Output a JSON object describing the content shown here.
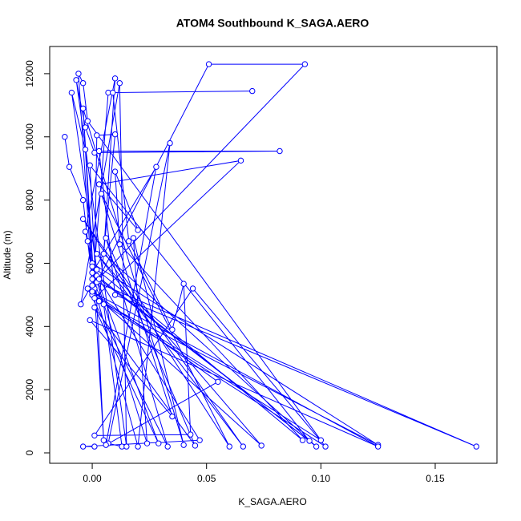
{
  "chart_data": {
    "type": "line",
    "title": "ATOM4 Southbound K_SAGA.AERO",
    "x_label": "K_SAGA.AERO",
    "y_label": "Altitude (m)",
    "color": "#0000ff",
    "x": [
      -0.012,
      -0.01,
      -0.004,
      -0.002,
      0.0,
      0.005,
      0.013,
      0.007,
      0.034,
      0.02,
      0.001,
      0.002,
      0.01,
      0.003,
      0.125,
      0.0,
      -0.003,
      0.01,
      0.005,
      0.098,
      0.002,
      -0.005,
      0.012,
      0.015,
      -0.007,
      -0.003,
      0.001,
      0.082,
      0.003,
      0.01,
      0.168,
      0.002,
      0.051,
      0.093,
      0.0,
      -0.006,
      -0.004,
      -0.002,
      0.1,
      0.0,
      0.007,
      0.07,
      0.009,
      0.016,
      0.035,
      0.04,
      0.043,
      0.001,
      0.044,
      0.102,
      0.001,
      0.065,
      0.003,
      0.02,
      0.01,
      0.012,
      0.092,
      0.002,
      -0.009,
      -0.003,
      0.0,
      0.028,
      0.006,
      0.055,
      0.0,
      0.125,
      -0.001,
      0.035,
      0.004,
      0.06,
      -0.004,
      0.066,
      0.002,
      0.074,
      -0.002,
      0.033,
      0.006,
      0.045,
      0.001,
      0.029,
      0.0,
      0.024,
      0.018,
      0.04,
      -0.004,
      0.005,
      -0.001,
      0.095,
      0.003,
      0.047,
      -0.004,
      0.001
    ],
    "y": [
      10000,
      9050,
      8000,
      6700,
      5500,
      4700,
      200,
      300,
      9800,
      200,
      5200,
      10050,
      10080,
      4800,
      250,
      6000,
      7000,
      11850,
      6300,
      200,
      5600,
      4700,
      11700,
      200,
      11800,
      10300,
      9500,
      9550,
      9550,
      5000,
      200,
      5400,
      12300,
      12300,
      5300,
      12000,
      11700,
      10500,
      400,
      5000,
      11400,
      11450,
      11400,
      6700,
      3900,
      5350,
      580,
      550,
      5200,
      200,
      4900,
      9250,
      8500,
      7050,
      8900,
      6600,
      400,
      5800,
      11400,
      9600,
      5700,
      9050,
      250,
      2250,
      5100,
      200,
      4200,
      1150,
      8200,
      200,
      7400,
      200,
      6300,
      230,
      5200,
      200,
      6800,
      230,
      4600,
      300,
      5900,
      300,
      6800,
      250,
      10900,
      400,
      9100,
      380,
      5500,
      400,
      200,
      200
    ],
    "xlim": [
      -0.0186,
      0.177
    ],
    "ylim": [
      -330,
      12860
    ],
    "xticks": [
      {
        "value": 0,
        "label": "0.00"
      },
      {
        "value": 0.05,
        "label": "0.05"
      },
      {
        "value": 0.1,
        "label": "0.10"
      },
      {
        "value": 0.15,
        "label": "0.15"
      }
    ],
    "yticks": [
      0,
      2000,
      4000,
      6000,
      8000,
      10000,
      12000
    ],
    "grid": false
  }
}
